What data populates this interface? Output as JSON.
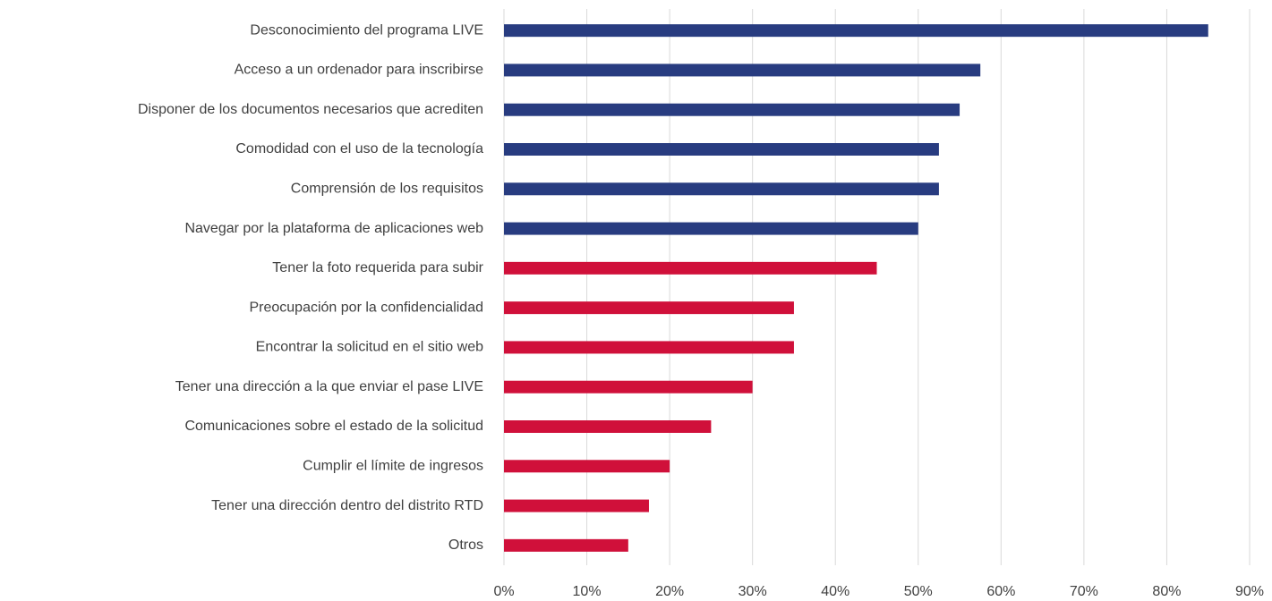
{
  "chart_data": {
    "type": "hbar",
    "categories": [
      "Desconocimiento del programa LIVE",
      "Acceso a un ordenador para inscribirse",
      "Disponer de los documentos necesarios que acrediten",
      "Comodidad con el uso de la tecnología",
      "Comprensión de los requisitos",
      "Navegar por la plataforma de aplicaciones web",
      "Tener la foto requerida para subir",
      "Preocupación por la confidencialidad",
      "Encontrar la solicitud en el sitio web",
      "Tener una dirección a la que enviar el pase LIVE",
      "Comunicaciones sobre el estado de la solicitud",
      "Cumplir el límite de ingresos",
      "Tener una dirección dentro del distrito RTD",
      "Otros"
    ],
    "values": [
      85,
      57.5,
      55,
      52.5,
      52.5,
      50,
      45,
      35,
      35,
      30,
      25,
      20,
      17.5,
      15
    ],
    "colors": [
      "#283c80",
      "#283c80",
      "#283c80",
      "#283c80",
      "#283c80",
      "#283c80",
      "#d0103a",
      "#d0103a",
      "#d0103a",
      "#d0103a",
      "#d0103a",
      "#d0103a",
      "#d0103a",
      "#d0103a"
    ],
    "xlim": [
      0,
      90
    ],
    "xticks": [
      {
        "value": 0,
        "label": "0%"
      },
      {
        "value": 10,
        "label": "10%"
      },
      {
        "value": 20,
        "label": "20%"
      },
      {
        "value": 30,
        "label": "30%"
      },
      {
        "value": 40,
        "label": "40%"
      },
      {
        "value": 50,
        "label": "50%"
      },
      {
        "value": 60,
        "label": "60%"
      },
      {
        "value": 70,
        "label": "70%"
      },
      {
        "value": 80,
        "label": "80%"
      },
      {
        "value": 90,
        "label": "90%"
      }
    ],
    "grid": true
  }
}
